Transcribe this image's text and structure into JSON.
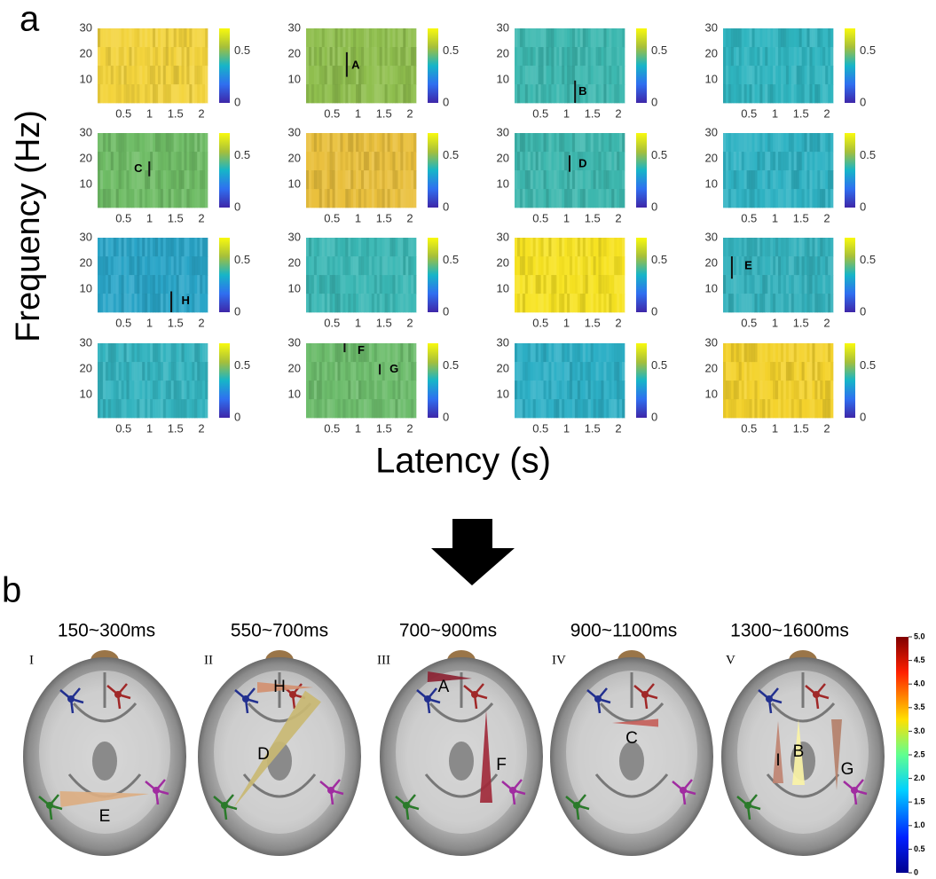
{
  "panel_a": {
    "label": "a",
    "y_axis_label": "Frequency (Hz)",
    "x_axis_label": "Latency (s)",
    "yticks": [
      10,
      20,
      30
    ],
    "xticks": [
      0.5,
      1,
      1.5,
      2
    ],
    "colorbar_ticks": [
      0,
      0.5
    ],
    "maps": [
      {
        "color": "#f3d43c"
      },
      {
        "color": "#8fbf4e",
        "labels": [
          "A"
        ]
      },
      {
        "color": "#3cb8b0",
        "labels": [
          "B"
        ]
      },
      {
        "color": "#2fb5c0"
      },
      {
        "color": "#6fbd66",
        "labels": [
          "C"
        ]
      },
      {
        "color": "#e9c03c"
      },
      {
        "color": "#3db7ae",
        "labels": [
          "D"
        ]
      },
      {
        "color": "#2fb3c4"
      },
      {
        "color": "#2aa6c8",
        "labels": [
          "H"
        ]
      },
      {
        "color": "#3ab7b4"
      },
      {
        "color": "#f7e322"
      },
      {
        "color": "#34b2bd",
        "labels": [
          "E"
        ]
      },
      {
        "color": "#34b4c0"
      },
      {
        "color": "#6dbd6c",
        "labels": [
          "F",
          "G"
        ]
      },
      {
        "color": "#2db0c6"
      },
      {
        "color": "#f4d22c"
      }
    ]
  },
  "panel_b": {
    "label": "b",
    "colorbar_ticks": [
      "0",
      "0.5",
      "1.0",
      "1.5",
      "2.0",
      "2.5",
      "3.0",
      "3.5",
      "4.0",
      "4.5",
      "5.0"
    ],
    "windows": [
      {
        "numeral": "I",
        "time": "150~300ms",
        "connections": [
          "E"
        ]
      },
      {
        "numeral": "II",
        "time": "550~700ms",
        "connections": [
          "H",
          "D"
        ]
      },
      {
        "numeral": "III",
        "time": "700~900ms",
        "connections": [
          "A",
          "F"
        ]
      },
      {
        "numeral": "IV",
        "time": "900~1100ms",
        "connections": [
          "C"
        ]
      },
      {
        "numeral": "V",
        "time": "1300~1600ms",
        "connections": [
          "I",
          "B",
          "G"
        ]
      }
    ]
  }
}
